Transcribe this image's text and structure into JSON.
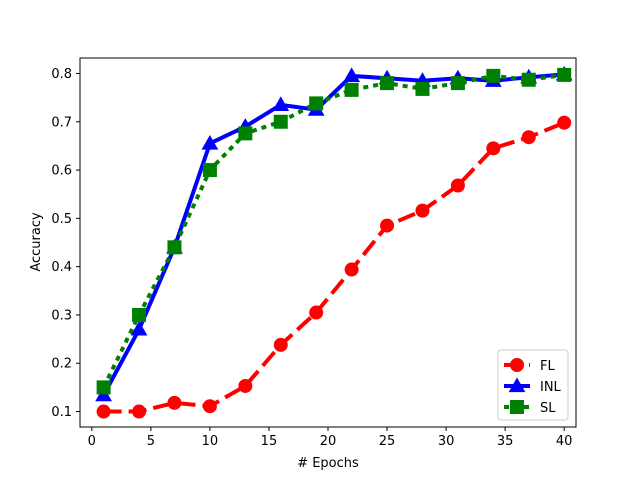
{
  "chart_data": {
    "type": "line",
    "title": "",
    "xlabel": "# Epochs",
    "ylabel": "Accuracy",
    "xlim": [
      -1,
      41
    ],
    "ylim": [
      0.068,
      0.832
    ],
    "xticks": [
      0,
      5,
      10,
      15,
      20,
      25,
      30,
      35,
      40
    ],
    "yticks": [
      0.1,
      0.2,
      0.3,
      0.4,
      0.5,
      0.6,
      0.7,
      0.8
    ],
    "x": [
      1,
      4,
      7,
      10,
      13,
      16,
      19,
      22,
      25,
      28,
      31,
      34,
      37,
      40
    ],
    "legend_position": "lower-right",
    "grid": false,
    "series": [
      {
        "name": "FL",
        "color": "#ff0000",
        "linestyle": "dashed",
        "marker": "circle",
        "values": [
          0.1,
          0.1,
          0.118,
          0.111,
          0.153,
          0.238,
          0.305,
          0.394,
          0.485,
          0.516,
          0.568,
          0.645,
          0.668,
          0.698
        ]
      },
      {
        "name": "INL",
        "color": "#0000ff",
        "linestyle": "solid",
        "marker": "triangle",
        "values": [
          0.134,
          0.27,
          0.44,
          0.655,
          0.69,
          0.735,
          0.725,
          0.795,
          0.79,
          0.785,
          0.79,
          0.785,
          0.792,
          0.798
        ]
      },
      {
        "name": "SL",
        "color": "#008000",
        "linestyle": "dotted",
        "marker": "square",
        "values": [
          0.15,
          0.3,
          0.44,
          0.6,
          0.676,
          0.7,
          0.738,
          0.766,
          0.78,
          0.768,
          0.78,
          0.795,
          0.787,
          0.797
        ]
      }
    ]
  }
}
